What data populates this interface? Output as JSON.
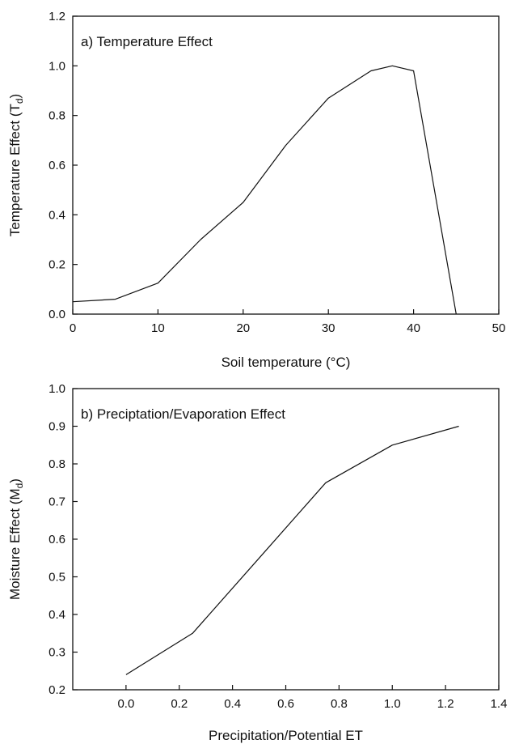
{
  "chart_data": [
    {
      "type": "line",
      "title": "a) Temperature Effect",
      "xlabel": "Soil temperature (°C)",
      "ylabel": "Temperature Effect (T",
      "ylabel_sub": "d",
      "ylabel_end": ")",
      "xlim": [
        0,
        50
      ],
      "ylim": [
        0.0,
        1.2
      ],
      "xticks": [
        0,
        10,
        20,
        30,
        40,
        50
      ],
      "xtick_labels": [
        "0",
        "10",
        "20",
        "30",
        "40",
        "50"
      ],
      "yticks": [
        0.0,
        0.2,
        0.4,
        0.6,
        0.8,
        1.0,
        1.2
      ],
      "ytick_labels": [
        "0.0",
        "0.2",
        "0.4",
        "0.6",
        "0.8",
        "1.0",
        "1.2"
      ],
      "grid": false,
      "series": [
        {
          "x": [
            0,
            5,
            10,
            15,
            20,
            25,
            30,
            35,
            37.5,
            40,
            45
          ],
          "y": [
            0.05,
            0.06,
            0.125,
            0.3,
            0.45,
            0.68,
            0.87,
            0.98,
            1.0,
            0.98,
            0.0
          ]
        }
      ]
    },
    {
      "type": "line",
      "title": "b) Preciptation/Evaporation Effect",
      "xlabel": "Precipitation/Potential ET",
      "ylabel": "Moisture Effect (M",
      "ylabel_sub": "d",
      "ylabel_end": ")",
      "xlim": [
        -0.2,
        1.4
      ],
      "ylim": [
        0.2,
        1.0
      ],
      "xticks": [
        0.0,
        0.2,
        0.4,
        0.6,
        0.8,
        1.0,
        1.2,
        1.4
      ],
      "xtick_labels": [
        "0.0",
        "0.2",
        "0.4",
        "0.6",
        "0.8",
        "1.0",
        "1.2",
        "1.4"
      ],
      "yticks": [
        0.2,
        0.3,
        0.4,
        0.5,
        0.6,
        0.7,
        0.8,
        0.9,
        1.0
      ],
      "ytick_labels": [
        "0.2",
        "0.3",
        "0.4",
        "0.5",
        "0.6",
        "0.7",
        "0.8",
        "0.9",
        "1.0"
      ],
      "grid": false,
      "series": [
        {
          "x": [
            0.0,
            0.25,
            0.5,
            0.75,
            1.0,
            1.25
          ],
          "y": [
            0.24,
            0.35,
            0.55,
            0.75,
            0.85,
            0.9
          ]
        }
      ]
    }
  ]
}
